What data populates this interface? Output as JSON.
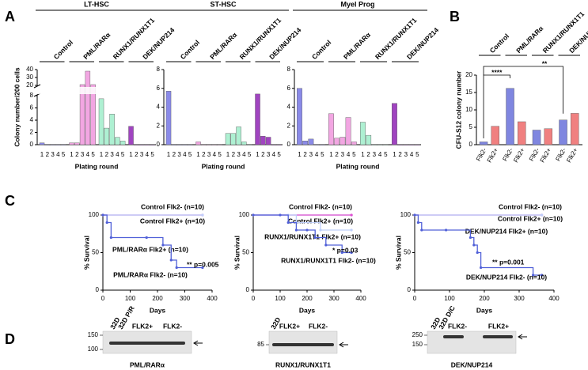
{
  "panel_labels": [
    "A",
    "B",
    "C",
    "D"
  ],
  "chart_data": [
    {
      "type": "block-bar",
      "title": "LT-HSC",
      "ylabel": "Colony number/200 cells",
      "xlabel": "Plating round",
      "categories": [
        "1",
        "2",
        "3",
        "4",
        "5"
      ],
      "series": [
        {
          "name": "Control",
          "color": "#8a8ae8",
          "values": [
            0.3,
            0,
            0,
            0,
            0
          ]
        },
        {
          "name": "PML/RARα",
          "color": "#f2a6e2",
          "values": [
            0.3,
            0.3,
            21,
            38,
            21
          ]
        },
        {
          "name": "RUNX1/RUNX1T1",
          "color": "#aef0d2",
          "values": [
            7.5,
            2.7,
            5,
            1.2,
            0.6
          ]
        },
        {
          "name": "DEK/NUP214",
          "color": "#a044c0",
          "values": [
            3,
            0,
            0,
            0,
            0
          ]
        }
      ],
      "ylim": [
        0,
        40
      ],
      "ybreak": [
        8,
        20
      ],
      "yticks": [
        0,
        2,
        4,
        6,
        8,
        20,
        30,
        40
      ]
    },
    {
      "type": "block-bar",
      "title": "ST-HSC",
      "xlabel": "Plating round",
      "categories": [
        "1",
        "2",
        "3",
        "4",
        "5"
      ],
      "series": [
        {
          "name": "Control",
          "color": "#8a8ae8",
          "values": [
            5.7,
            0,
            0,
            0,
            0
          ]
        },
        {
          "name": "PML/RARα",
          "color": "#f2a6e2",
          "values": [
            0.3,
            0,
            0,
            0,
            0
          ]
        },
        {
          "name": "RUNX1/RUNX1T1",
          "color": "#aef0d2",
          "values": [
            1.2,
            1.2,
            1.9,
            0.3,
            0
          ]
        },
        {
          "name": "DEK/NUP214",
          "color": "#a044c0",
          "values": [
            5.4,
            0.9,
            0.8,
            0,
            0
          ]
        }
      ],
      "ylim": [
        0,
        8
      ],
      "yticks": [
        0,
        2,
        4,
        6,
        8
      ]
    },
    {
      "type": "block-bar",
      "title": "Myel Prog",
      "xlabel": "Plating round",
      "categories": [
        "1",
        "2",
        "3",
        "4",
        "5"
      ],
      "series": [
        {
          "name": "Control",
          "color": "#8a8ae8",
          "values": [
            6,
            0.4,
            0.6,
            0,
            0
          ]
        },
        {
          "name": "PML/RARα",
          "color": "#f2a6e2",
          "values": [
            3.3,
            0.7,
            0.8,
            2.9,
            0.3
          ]
        },
        {
          "name": "RUNX1/RUNX1T1",
          "color": "#aef0d2",
          "values": [
            2.4,
            1,
            0,
            0,
            0
          ]
        },
        {
          "name": "DEK/NUP214",
          "color": "#a044c0",
          "values": [
            4.4,
            0,
            0,
            0,
            0
          ]
        }
      ],
      "ylim": [
        0,
        8
      ],
      "yticks": [
        0,
        2,
        4,
        6,
        8
      ]
    },
    {
      "type": "grouped-bar",
      "ylabel": "CFU-S12 colony number",
      "groups": [
        "Control",
        "PML/RARα",
        "RUNX1/RUNX1T1",
        "DEK/NUP214"
      ],
      "series": [
        {
          "name": "Flk2-",
          "color": "#7f86e0",
          "values": [
            0.8,
            16.2,
            4.2,
            7.1
          ]
        },
        {
          "name": "Flk2+",
          "color": "#f08080",
          "values": [
            5.3,
            6.6,
            4.6,
            9.0
          ]
        }
      ],
      "annotations": [
        "****",
        "**"
      ],
      "ylim": [
        0,
        20
      ],
      "yticks": [
        0,
        5,
        10,
        15,
        20
      ]
    },
    {
      "type": "survival",
      "xlabel": "Days",
      "ylabel": "% Survival",
      "xlim": [
        0,
        400
      ],
      "xticks": [
        0,
        100,
        200,
        300,
        400
      ],
      "ylim": [
        0,
        100
      ],
      "yticks": [
        0,
        50,
        100
      ],
      "series": [
        {
          "name": "Control Flk2- (n=10)",
          "color": "#a8bcf2",
          "x": [
            0,
            365
          ],
          "values": [
            100,
            100
          ]
        },
        {
          "name": "Control Flk2+ (n=10)",
          "color": "#e050d0",
          "x": [
            0,
            365
          ],
          "values": [
            100,
            100
          ]
        },
        {
          "name": "PML/RARα Flk2+ (n=10)",
          "color": "#c0d0fa",
          "x": [
            0,
            365
          ],
          "values": [
            100,
            100
          ]
        },
        {
          "name": "PML/RARα Flk2- (n=10)",
          "color": "#5060d8",
          "x": [
            0,
            15,
            30,
            160,
            220,
            250,
            270,
            365
          ],
          "values": [
            100,
            90,
            70,
            70,
            60,
            40,
            30,
            30
          ]
        }
      ],
      "annotations": [
        "** p=0.005"
      ]
    },
    {
      "type": "survival",
      "xlabel": "Days",
      "ylabel": "% Survival",
      "xlim": [
        0,
        400
      ],
      "xticks": [
        0,
        100,
        200,
        300,
        400
      ],
      "ylim": [
        0,
        100
      ],
      "yticks": [
        0,
        50,
        100
      ],
      "series": [
        {
          "name": "Control Flk2- (n=10)",
          "color": "#a8bcf2",
          "x": [
            0,
            365
          ],
          "values": [
            100,
            100
          ]
        },
        {
          "name": "Control Flk2+ (n=10)",
          "color": "#e050d0",
          "x": [
            0,
            365
          ],
          "values": [
            100,
            100
          ]
        },
        {
          "name": "RUNX1/RUNX1T1 Flk2+ (n=10)",
          "color": "#c0d0fa",
          "x": [
            0,
            130,
            160,
            250,
            365
          ],
          "values": [
            100,
            100,
            90,
            80,
            80
          ]
        },
        {
          "name": "RUNX1/RUNX1T1 Flk2- (n=10)",
          "color": "#5060d8",
          "x": [
            0,
            100,
            130,
            160,
            200,
            230,
            270,
            330,
            365
          ],
          "values": [
            100,
            100,
            90,
            80,
            80,
            70,
            60,
            50,
            50
          ]
        }
      ],
      "annotations": [
        "* p=0.03"
      ]
    },
    {
      "type": "survival",
      "xlabel": "Days",
      "ylabel": "% Survival",
      "xlim": [
        0,
        400
      ],
      "xticks": [
        0,
        100,
        200,
        300,
        400
      ],
      "ylim": [
        0,
        100
      ],
      "yticks": [
        0,
        50,
        100
      ],
      "series": [
        {
          "name": "Control Flk2- (n=10)",
          "color": "#a8bcf2",
          "x": [
            0,
            365
          ],
          "values": [
            100,
            100
          ]
        },
        {
          "name": "Control Flk2+ (n=10)",
          "color": "#e050d0",
          "x": [
            0,
            365
          ],
          "values": [
            100,
            100
          ]
        },
        {
          "name": "DEK/NUP214 Flk2+ (n=10)",
          "color": "#c0d0fa",
          "x": [
            0,
            365
          ],
          "values": [
            100,
            100
          ]
        },
        {
          "name": "DEK/NUP214 Flk2- (n=10)",
          "color": "#5060d8",
          "x": [
            0,
            10,
            20,
            90,
            160,
            170,
            180,
            190,
            340,
            365
          ],
          "values": [
            100,
            90,
            80,
            80,
            70,
            60,
            50,
            30,
            20,
            20
          ]
        }
      ],
      "annotations": [
        "** p=0.001"
      ]
    }
  ],
  "blots": [
    {
      "lanes": [
        "32D",
        "32D P/R",
        "FLK2+",
        "FLK2-"
      ],
      "markers": [
        "150",
        "100"
      ],
      "label": "PML/RARα"
    },
    {
      "lanes": [
        "32D",
        "FLK2+",
        "FLK2-"
      ],
      "markers": [
        "85"
      ],
      "label": "RUNX1/RUNX1T1"
    },
    {
      "lanes": [
        "32D",
        "32D D/C",
        "FLK2-",
        "FLK2+"
      ],
      "markers": [
        "250",
        "150"
      ],
      "label": "DEK/NUP214"
    }
  ]
}
